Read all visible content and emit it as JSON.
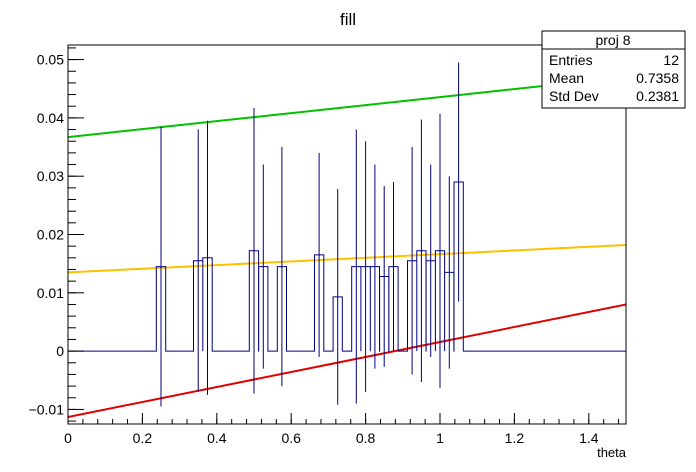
{
  "chart_data": {
    "type": "line",
    "title": "fill",
    "xlabel": "theta",
    "ylabel": "",
    "xlim": [
      0,
      1.5
    ],
    "ylim": [
      -0.0125,
      0.0525
    ],
    "x_ticks": [
      0,
      0.2,
      0.4,
      0.6,
      0.8,
      1,
      1.2,
      1.4
    ],
    "x_tick_labels": [
      "0",
      "0.2",
      "0.4",
      "0.6",
      "0.8",
      "1",
      "1.2",
      "1.4"
    ],
    "y_ticks": [
      -0.01,
      0,
      0.01,
      0.02,
      0.03,
      0.04,
      0.05
    ],
    "y_tick_labels": [
      "−0.01",
      "0",
      "0.01",
      "0.02",
      "0.03",
      "0.04",
      "0.05"
    ],
    "grid": false,
    "stats_box": {
      "title": "proj 8",
      "rows": [
        {
          "label": "Entries",
          "value": "12"
        },
        {
          "label": "Mean",
          "value": "0.7358"
        },
        {
          "label": "Std Dev",
          "value": "0.2381"
        }
      ],
      "placement": "top-right"
    },
    "histogram": {
      "color": "#000080",
      "bin_width": 0.025,
      "bins": [
        {
          "x": 0.25,
          "y": 0.0145,
          "err": 0.024
        },
        {
          "x": 0.35,
          "y": 0.0155,
          "err": 0.0225
        },
        {
          "x": 0.375,
          "y": 0.016,
          "err": 0.0235
        },
        {
          "x": 0.5,
          "y": 0.0172,
          "err": 0.0245
        },
        {
          "x": 0.525,
          "y": 0.0145,
          "err": 0.0175
        },
        {
          "x": 0.575,
          "y": 0.0145,
          "err": 0.0205
        },
        {
          "x": 0.675,
          "y": 0.0165,
          "err": 0.0175
        },
        {
          "x": 0.725,
          "y": 0.0093,
          "err": 0.0185
        },
        {
          "x": 0.775,
          "y": 0.0145,
          "err": 0.0235
        },
        {
          "x": 0.8,
          "y": 0.0145,
          "err": 0.0215
        },
        {
          "x": 0.825,
          "y": 0.0145,
          "err": 0.0175
        },
        {
          "x": 0.85,
          "y": 0.0128,
          "err": 0.0155
        },
        {
          "x": 0.875,
          "y": 0.0145,
          "err": 0.0145
        },
        {
          "x": 0.925,
          "y": 0.0155,
          "err": 0.0195
        },
        {
          "x": 0.95,
          "y": 0.0172,
          "err": 0.0225
        },
        {
          "x": 0.975,
          "y": 0.0155,
          "err": 0.0165
        },
        {
          "x": 1.0,
          "y": 0.0172,
          "err": 0.0235
        },
        {
          "x": 1.025,
          "y": 0.0135,
          "err": 0.0165
        },
        {
          "x": 1.05,
          "y": 0.029,
          "err": 0.0205
        }
      ]
    },
    "series": [
      {
        "color": "#00c000",
        "x": [
          0,
          1.5
        ],
        "y": [
          0.0367,
          0.047
        ]
      },
      {
        "color": "#ffc000",
        "x": [
          0,
          1.5
        ],
        "y": [
          0.0135,
          0.0182
        ]
      },
      {
        "color": "#e00000",
        "x": [
          0,
          1.5
        ],
        "y": [
          -0.0113,
          0.008
        ]
      }
    ]
  }
}
